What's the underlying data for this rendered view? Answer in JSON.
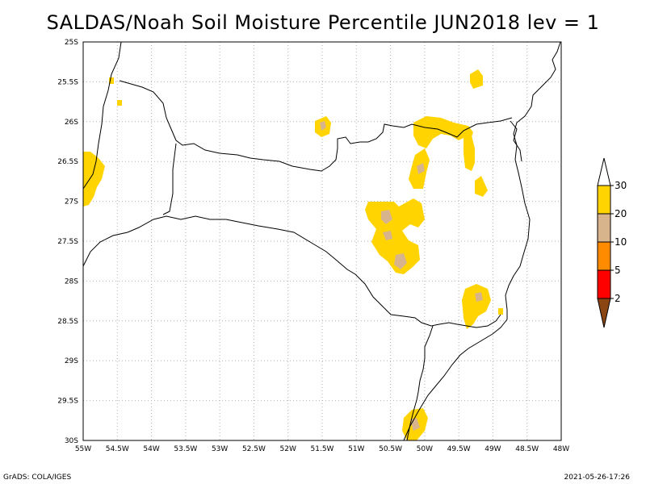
{
  "title": "SALDAS/Noah Soil Moisture Percentile JUN2018 lev = 1",
  "footer": {
    "left": "GrADS: COLA/IGES",
    "right": "2021-05-26-17:26"
  },
  "axes": {
    "lon_range": [
      -55,
      -48
    ],
    "lat_range": [
      -30,
      -25
    ],
    "lon_ticks": [
      "55W",
      "54.5W",
      "54W",
      "53.5W",
      "53W",
      "52.5W",
      "52W",
      "51.5W",
      "51W",
      "50.5W",
      "50W",
      "49.5W",
      "49W",
      "48.5W",
      "48W"
    ],
    "lat_ticks": [
      "25S",
      "25.5S",
      "26S",
      "26.5S",
      "27S",
      "27.5S",
      "28S",
      "28.5S",
      "29S",
      "29.5S",
      "30S"
    ]
  },
  "colorbar": {
    "labels": [
      "30",
      "20",
      "10",
      "5",
      "2"
    ],
    "colors": {
      "30": "#ffd400",
      "20": "#d8b48c",
      "10": "#ff8c00",
      "5": "#ff0000",
      "2": "#8b4513"
    }
  },
  "colors": {
    "yellow": "#ffd400",
    "tan": "#d8b48c",
    "grid": "#b0b0b0",
    "border": "#000000"
  }
}
